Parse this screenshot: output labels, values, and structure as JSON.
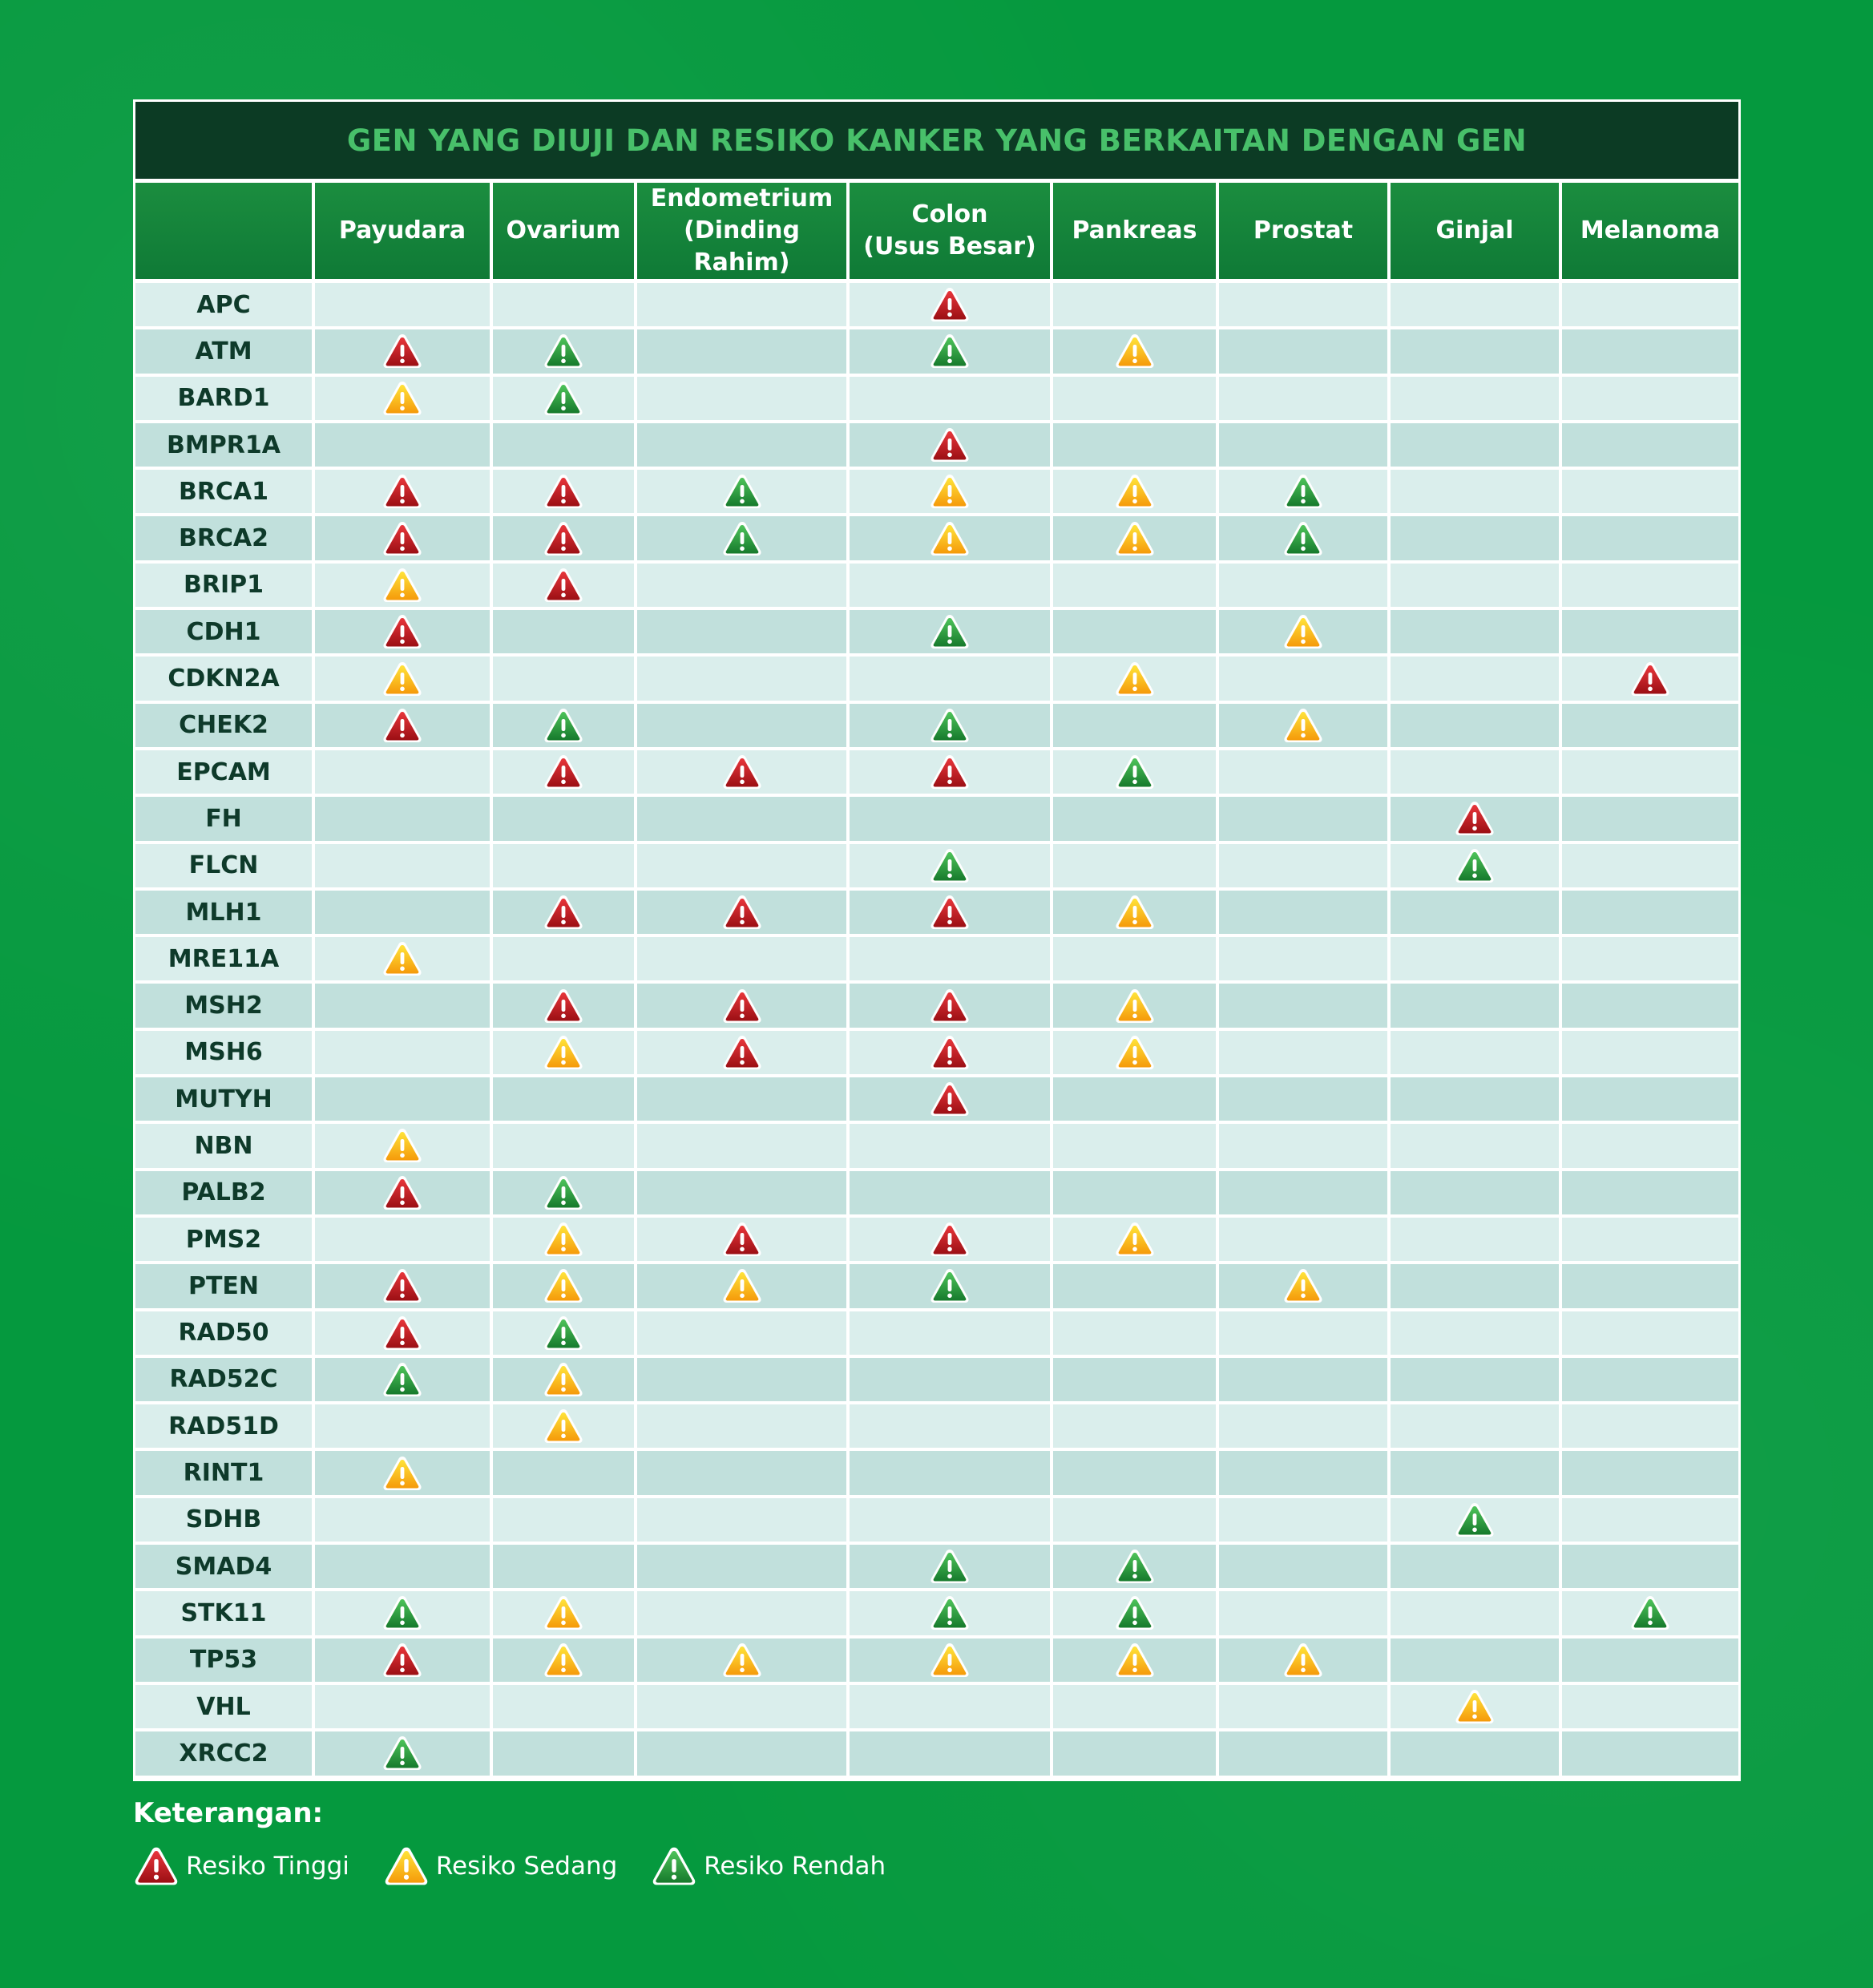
{
  "title": "GEN YANG DIUJI DAN RESIKO KANKER YANG BERKAITAN DENGAN GEN",
  "columns": [
    {
      "line1": "Payudara",
      "line2": ""
    },
    {
      "line1": "Ovarium",
      "line2": ""
    },
    {
      "line1": "Endometrium",
      "line2": "(Dinding Rahim)"
    },
    {
      "line1": "Colon",
      "line2": "(Usus Besar)"
    },
    {
      "line1": "Pankreas",
      "line2": ""
    },
    {
      "line1": "Prostat",
      "line2": ""
    },
    {
      "line1": "Ginjal",
      "line2": ""
    },
    {
      "line1": "Melanoma",
      "line2": ""
    }
  ],
  "risk_colors": {
    "H": {
      "top": "#e8363b",
      "bottom": "#9b0f14",
      "edge": "#ffffff"
    },
    "M": {
      "top": "#ffe33a",
      "bottom": "#f59a0a",
      "edge": "#ffffff"
    },
    "L": {
      "top": "#4ec35a",
      "bottom": "#167a2c",
      "edge": "#ffffff"
    }
  },
  "rows": [
    {
      "gene": "APC",
      "risk": [
        "",
        "",
        "",
        "H",
        "",
        "",
        "",
        ""
      ]
    },
    {
      "gene": "ATM",
      "risk": [
        "H",
        "L",
        "",
        "L",
        "M",
        "",
        "",
        ""
      ]
    },
    {
      "gene": "BARD1",
      "risk": [
        "M",
        "L",
        "",
        "",
        "",
        "",
        "",
        ""
      ]
    },
    {
      "gene": "BMPR1A",
      "risk": [
        "",
        "",
        "",
        "H",
        "",
        "",
        "",
        ""
      ]
    },
    {
      "gene": "BRCA1",
      "risk": [
        "H",
        "H",
        "L",
        "M",
        "M",
        "L",
        "",
        ""
      ]
    },
    {
      "gene": "BRCA2",
      "risk": [
        "H",
        "H",
        "L",
        "M",
        "M",
        "L",
        "",
        ""
      ]
    },
    {
      "gene": "BRIP1",
      "risk": [
        "M",
        "H",
        "",
        "",
        "",
        "",
        "",
        ""
      ]
    },
    {
      "gene": "CDH1",
      "risk": [
        "H",
        "",
        "",
        "L",
        "",
        "M",
        "",
        ""
      ]
    },
    {
      "gene": "CDKN2A",
      "risk": [
        "M",
        "",
        "",
        "",
        "M",
        "",
        "",
        "H"
      ]
    },
    {
      "gene": "CHEK2",
      "risk": [
        "H",
        "L",
        "",
        "L",
        "",
        "M",
        "",
        ""
      ]
    },
    {
      "gene": "EPCAM",
      "risk": [
        "",
        "H",
        "H",
        "H",
        "L",
        "",
        "",
        ""
      ]
    },
    {
      "gene": "FH",
      "risk": [
        "",
        "",
        "",
        "",
        "",
        "",
        "H",
        ""
      ]
    },
    {
      "gene": "FLCN",
      "risk": [
        "",
        "",
        "",
        "L",
        "",
        "",
        "L",
        ""
      ]
    },
    {
      "gene": "MLH1",
      "risk": [
        "",
        "H",
        "H",
        "H",
        "M",
        "",
        "",
        ""
      ]
    },
    {
      "gene": "MRE11A",
      "risk": [
        "M",
        "",
        "",
        "",
        "",
        "",
        "",
        ""
      ]
    },
    {
      "gene": "MSH2",
      "risk": [
        "",
        "H",
        "H",
        "H",
        "M",
        "",
        "",
        ""
      ]
    },
    {
      "gene": "MSH6",
      "risk": [
        "",
        "M",
        "H",
        "H",
        "M",
        "",
        "",
        ""
      ]
    },
    {
      "gene": "MUTYH",
      "risk": [
        "",
        "",
        "",
        "H",
        "",
        "",
        "",
        ""
      ]
    },
    {
      "gene": "NBN",
      "risk": [
        "M",
        "",
        "",
        "",
        "",
        "",
        "",
        ""
      ]
    },
    {
      "gene": "PALB2",
      "risk": [
        "H",
        "L",
        "",
        "",
        "",
        "",
        "",
        ""
      ]
    },
    {
      "gene": "PMS2",
      "risk": [
        "",
        "M",
        "H",
        "H",
        "M",
        "",
        "",
        ""
      ]
    },
    {
      "gene": "PTEN",
      "risk": [
        "H",
        "M",
        "M",
        "L",
        "",
        "M",
        "",
        ""
      ]
    },
    {
      "gene": "RAD50",
      "risk": [
        "H",
        "L",
        "",
        "",
        "",
        "",
        "",
        ""
      ]
    },
    {
      "gene": "RAD52C",
      "risk": [
        "L",
        "M",
        "",
        "",
        "",
        "",
        "",
        ""
      ]
    },
    {
      "gene": "RAD51D",
      "risk": [
        "",
        "M",
        "",
        "",
        "",
        "",
        "",
        ""
      ]
    },
    {
      "gene": "RINT1",
      "risk": [
        "M",
        "",
        "",
        "",
        "",
        "",
        "",
        ""
      ]
    },
    {
      "gene": "SDHB",
      "risk": [
        "",
        "",
        "",
        "",
        "",
        "",
        "L",
        ""
      ]
    },
    {
      "gene": "SMAD4",
      "risk": [
        "",
        "",
        "",
        "L",
        "L",
        "",
        "",
        ""
      ]
    },
    {
      "gene": "STK11",
      "risk": [
        "L",
        "M",
        "",
        "L",
        "L",
        "",
        "",
        "L"
      ]
    },
    {
      "gene": "TP53",
      "risk": [
        "H",
        "M",
        "M",
        "M",
        "M",
        "M",
        "",
        ""
      ]
    },
    {
      "gene": "VHL",
      "risk": [
        "",
        "",
        "",
        "",
        "",
        "",
        "M",
        ""
      ]
    },
    {
      "gene": "XRCC2",
      "risk": [
        "L",
        "",
        "",
        "",
        "",
        "",
        "",
        ""
      ]
    }
  ],
  "legend": {
    "title": "Keterangan:",
    "items": [
      {
        "code": "H",
        "label": "Resiko Tinggi"
      },
      {
        "code": "M",
        "label": "Resiko Sedang"
      },
      {
        "code": "L",
        "label": "Resiko Rendah"
      }
    ]
  }
}
